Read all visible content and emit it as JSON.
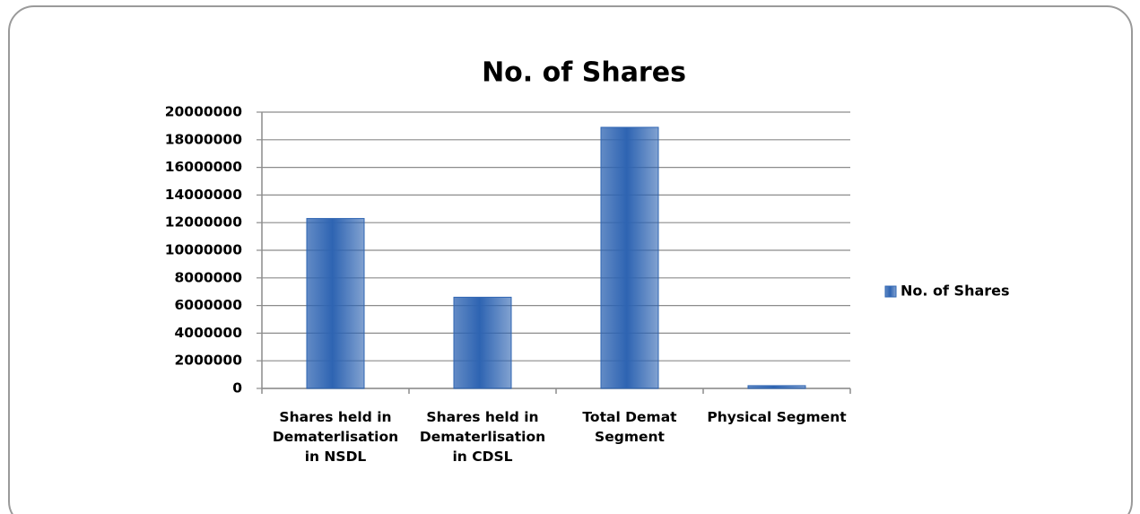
{
  "chart_data": {
    "type": "bar",
    "title": "No. of Shares",
    "categories": [
      "Shares held in Dematerlisation in NSDL",
      "Shares held in Dematerlisation in CDSL",
      "Total Demat Segment",
      "Physical Segment"
    ],
    "series": [
      {
        "name": "No. of Shares",
        "color": "#2e64b2",
        "values": [
          12300000,
          6600000,
          18900000,
          200000
        ]
      }
    ],
    "ylim": [
      0,
      20000000
    ],
    "yticks": [
      0,
      2000000,
      4000000,
      6000000,
      8000000,
      10000000,
      12000000,
      14000000,
      16000000,
      18000000,
      20000000
    ],
    "grid": true,
    "legend": "right"
  }
}
